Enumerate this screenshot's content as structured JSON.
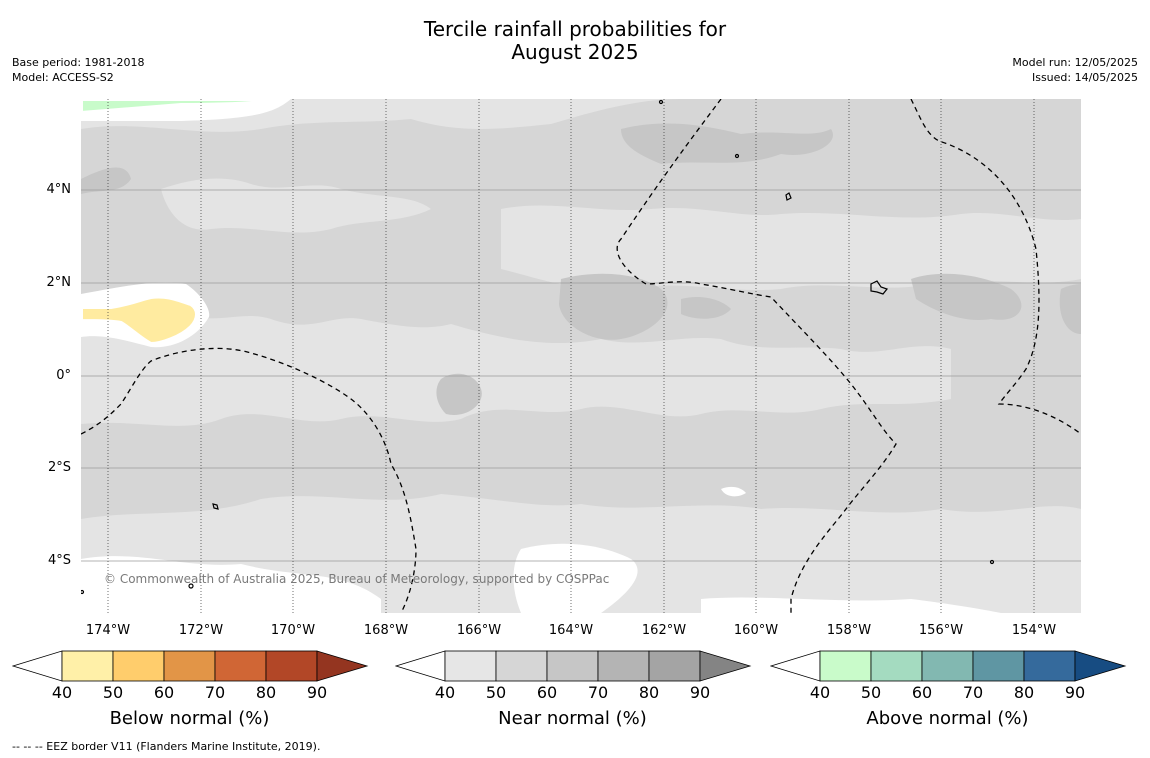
{
  "title": {
    "line1": "Tercile rainfall probabilities for",
    "line2": "August 2025"
  },
  "meta": {
    "base_period": "Base period: 1981-2018",
    "model": "Model: ACCESS-S2",
    "model_run": "Model run: 12/05/2025",
    "issued": "Issued: 14/05/2025"
  },
  "map": {
    "lat_labels": [
      "4°N",
      "2°N",
      "0°",
      "2°S",
      "4°S"
    ],
    "lon_labels": [
      "174°W",
      "172°W",
      "170°W",
      "168°W",
      "166°W",
      "164°W",
      "162°W",
      "160°W",
      "158°W",
      "156°W",
      "154°W"
    ],
    "copyright": "© Commonwealth of Australia 2025, Bureau of Meteorology, supported by COSPPac",
    "colors": {
      "ocean_base": "#e4e4e4",
      "near_50": "#d6d6d6",
      "near_60": "#c6c6c6",
      "white_area": "#ffffff",
      "below_40": "#ffeba0",
      "above_40": "#c8fbca",
      "eez_line": "#000000"
    }
  },
  "colorbars": [
    {
      "label": "Below normal (%)",
      "ticks": [
        "40",
        "50",
        "60",
        "70",
        "80",
        "90"
      ],
      "colors": [
        "#fff0a8",
        "#ffcd6c",
        "#e29547",
        "#d06635",
        "#b24727",
        "#943520"
      ]
    },
    {
      "label": "Near normal (%)",
      "ticks": [
        "40",
        "50",
        "60",
        "70",
        "80",
        "90"
      ],
      "colors": [
        "#e6e6e6",
        "#d6d6d6",
        "#c6c6c6",
        "#b4b4b4",
        "#a4a4a4",
        "#848484"
      ]
    },
    {
      "label": "Above normal (%)",
      "ticks": [
        "40",
        "50",
        "60",
        "70",
        "80",
        "90"
      ],
      "colors": [
        "#c9fbca",
        "#a4dbc0",
        "#82b8b1",
        "#5f96a3",
        "#356a9c",
        "#174c82"
      ]
    }
  ],
  "footnote": "-- -- -- EEZ border V11 (Flanders Marine Institute, 2019)."
}
